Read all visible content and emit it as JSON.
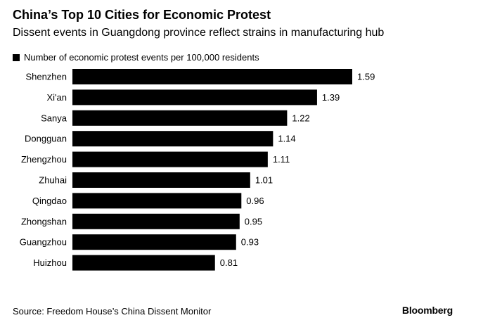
{
  "header": {
    "title": "China’s Top 10 Cities for Economic Protest",
    "subtitle": "Dissent events in Guangdong province reflect strains in manufacturing hub"
  },
  "footer": {
    "source": "Source: Freedom House’s China Dissent Monitor",
    "logo": "Bloomberg"
  },
  "chart_data": {
    "type": "bar",
    "orientation": "horizontal",
    "categories": [
      "Shenzhen",
      "Xi'an",
      "Sanya",
      "Dongguan",
      "Zhengzhou",
      "Zhuhai",
      "Qingdao",
      "Zhongshan",
      "Guangzhou",
      "Huizhou"
    ],
    "series": [
      {
        "name": "Number of economic protest events per 100,000 residents",
        "values": [
          1.59,
          1.39,
          1.22,
          1.14,
          1.11,
          1.01,
          0.96,
          0.95,
          0.93,
          0.81
        ],
        "labels": [
          "1.59",
          "1.39",
          "1.22",
          "1.14",
          "1.11",
          "1.01",
          "0.96",
          "0.95",
          "0.93",
          "0.81"
        ],
        "color": "#000000"
      }
    ],
    "title": "China’s Top 10 Cities for Economic Protest",
    "subtitle": "Dissent events in Guangdong province reflect strains in manufacturing hub",
    "xlim": [
      0,
      1.59
    ],
    "grid": false,
    "legend": "top-left"
  }
}
